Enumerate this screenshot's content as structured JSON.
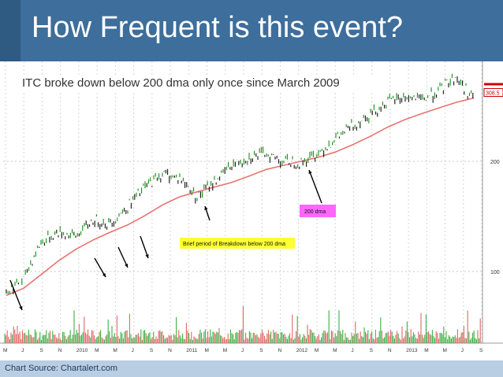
{
  "slide": {
    "title": "How Frequent is this event?",
    "subtitle": "ITC broke down below 200 dma only once since March 2009",
    "source": "Chart Source: Chartalert.com"
  },
  "chart_data": {
    "type": "line",
    "title": "",
    "xlabel": "",
    "ylabel": "",
    "y_scale": "log",
    "ylim": [
      80,
      350
    ],
    "y_ticks": [
      100,
      200
    ],
    "last_price_label": "308.5",
    "x_tick_labels": [
      "M",
      "J",
      "S",
      "N",
      "2010",
      "M",
      "M",
      "J",
      "S",
      "N",
      "2011",
      "M",
      "M",
      "J",
      "S",
      "N",
      "2012",
      "M",
      "M",
      "J",
      "S",
      "N",
      "2013",
      "M",
      "M",
      "J",
      "S"
    ],
    "series": [],
    "price": {
      "x": [
        "2009-03",
        "2009-05",
        "2009-07",
        "2009-09",
        "2009-11",
        "2010-01",
        "2010-03",
        "2010-05",
        "2010-07",
        "2010-09",
        "2010-11",
        "2011-01",
        "2011-03",
        "2011-05",
        "2011-07",
        "2011-09",
        "2011-11",
        "2012-01",
        "2012-03",
        "2012-05",
        "2012-07",
        "2012-09",
        "2012-11",
        "2013-01",
        "2013-03",
        "2013-05",
        "2013-06",
        "2013-07",
        "2013-08",
        "2013-09"
      ],
      "values": [
        88,
        95,
        120,
        128,
        125,
        138,
        135,
        150,
        170,
        185,
        180,
        160,
        175,
        195,
        205,
        210,
        200,
        198,
        210,
        230,
        250,
        270,
        290,
        300,
        295,
        310,
        330,
        340,
        315,
        300
      ]
    },
    "dma200": {
      "x": [
        "2009-03",
        "2009-05",
        "2009-07",
        "2009-09",
        "2009-11",
        "2010-01",
        "2010-03",
        "2010-05",
        "2010-07",
        "2010-09",
        "2010-11",
        "2011-01",
        "2011-03",
        "2011-05",
        "2011-07",
        "2011-09",
        "2011-11",
        "2012-01",
        "2012-03",
        "2012-05",
        "2012-07",
        "2012-09",
        "2012-11",
        "2013-01",
        "2013-03",
        "2013-05",
        "2013-07",
        "2013-09"
      ],
      "values": [
        86,
        90,
        98,
        107,
        115,
        122,
        128,
        134,
        142,
        152,
        160,
        165,
        170,
        175,
        182,
        190,
        195,
        200,
        205,
        212,
        222,
        234,
        248,
        260,
        270,
        280,
        290,
        298
      ]
    },
    "annotations": [
      {
        "text": "200 dma",
        "background": "#ff66ff"
      },
      {
        "text": "Brief period of Breakdown below 200 dma",
        "background": "#ffff33"
      }
    ],
    "colors": {
      "price_up": "#1a8a1a",
      "price_down": "#111111",
      "dma": "#e8736f",
      "volume_up": "#3cb043",
      "volume_down": "#e06666"
    }
  }
}
